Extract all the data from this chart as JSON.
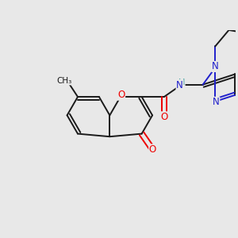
{
  "background_color": "#e8e8e8",
  "bond_color": "#1a1a1a",
  "bond_width": 1.4,
  "atom_colors": {
    "O": "#ee0000",
    "N": "#2020cc",
    "NH": "#339999",
    "C": "#1a1a1a"
  },
  "font_size": 8.5,
  "font_size_small": 7.5
}
